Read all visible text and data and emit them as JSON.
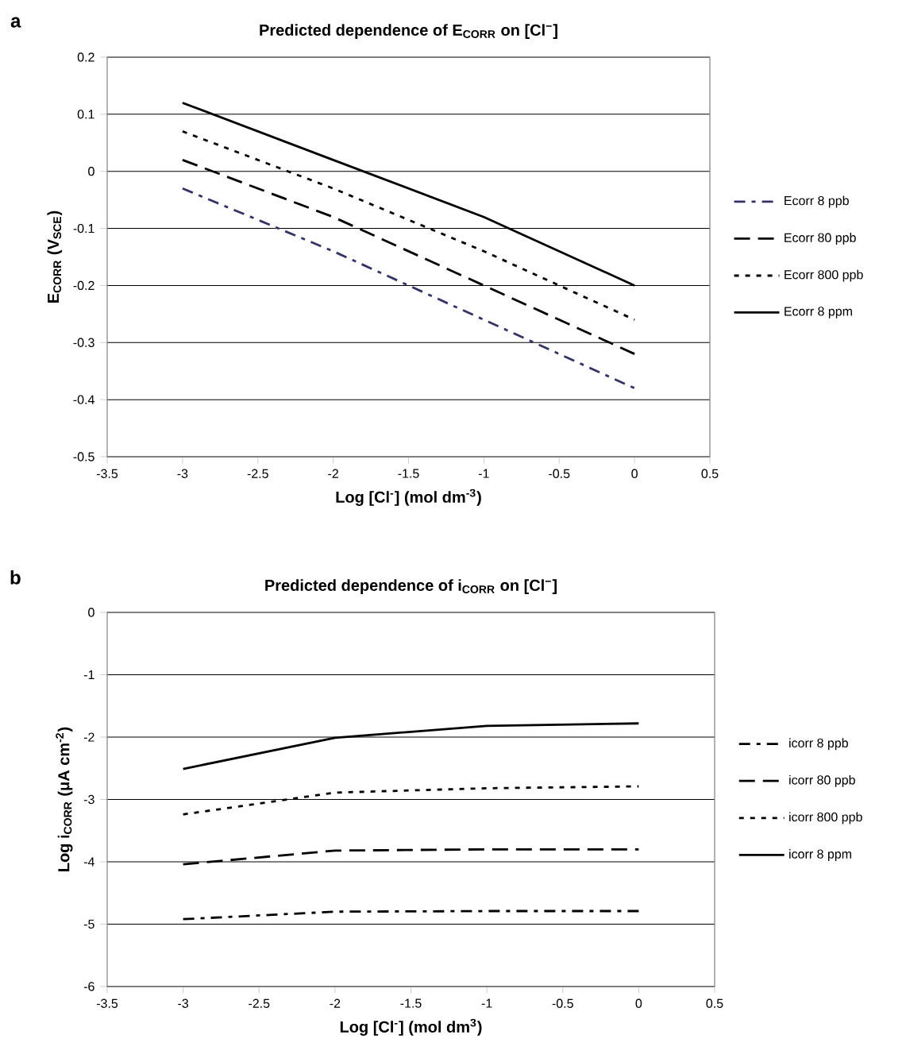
{
  "chart_data": [
    {
      "type": "line",
      "title": "Predicted dependence of E$_{CORR}$ on [Cl$^{−}$]",
      "xlabel": "Log [Cl$^{-}$] (mol dm$^{-3}$)",
      "ylabel": "E$_{CORR}$ (V$_{SCE}$)",
      "annotations": [
        "a"
      ],
      "x": [
        -3,
        -2,
        -1,
        0
      ],
      "xlim": [
        -3.5,
        0.5
      ],
      "xticks": [
        -3.5,
        -3,
        -2.5,
        -2,
        -1.5,
        -1,
        -0.5,
        0,
        0.5
      ],
      "ylim": [
        -0.5,
        0.2
      ],
      "yticks": [
        -0.5,
        -0.4,
        -0.3,
        -0.2,
        -0.1,
        0,
        0.1,
        0.2
      ],
      "grid": "y",
      "legend": "right",
      "series": [
        {
          "name": "Ecorr 8 ppb",
          "color": "#333366",
          "line_style": "dashdot",
          "values": [
            -0.03,
            -0.14,
            -0.26,
            -0.38
          ]
        },
        {
          "name": "Ecorr 80 ppb",
          "color": "#000000",
          "line_style": "dashed",
          "values": [
            0.02,
            -0.08,
            -0.2,
            -0.32
          ]
        },
        {
          "name": "Ecorr 800 ppb",
          "color": "#000000",
          "line_style": "dotted",
          "values": [
            0.07,
            -0.03,
            -0.14,
            -0.26
          ]
        },
        {
          "name": "Ecorr 8 ppm",
          "color": "#000000",
          "line_style": "solid",
          "values": [
            0.12,
            0.02,
            -0.08,
            -0.2
          ]
        }
      ]
    },
    {
      "type": "line",
      "title": "Predicted dependence of i$_{CORR}$ on [Cl$^{−}$]",
      "xlabel": "Log [Cl$^{-}$] (mol dm$^{3}$)",
      "ylabel": "Log i$_{CORR}$ (μA cm$^{-2}$)",
      "annotations": [
        "b"
      ],
      "x": [
        -3,
        -2,
        -1,
        0
      ],
      "xlim": [
        -3.5,
        0.5
      ],
      "xticks": [
        -3.5,
        -3,
        -2.5,
        -2,
        -1.5,
        -1,
        -0.5,
        0,
        0.5
      ],
      "ylim": [
        -6,
        0
      ],
      "yticks": [
        -6,
        -5,
        -4,
        -3,
        -2,
        -1,
        0
      ],
      "grid": "y",
      "legend": "right",
      "series": [
        {
          "name": "icorr 8 ppb",
          "color": "#000000",
          "line_style": "dashdot",
          "values": [
            -4.92,
            -4.8,
            -4.79,
            -4.79
          ]
        },
        {
          "name": "icorr 80 ppb",
          "color": "#000000",
          "line_style": "dashed",
          "values": [
            -4.04,
            -3.82,
            -3.8,
            -3.8
          ]
        },
        {
          "name": "icorr 800 ppb",
          "color": "#000000",
          "line_style": "dotted",
          "values": [
            -3.24,
            -2.89,
            -2.82,
            -2.79
          ]
        },
        {
          "name": "icorr 8 ppm",
          "color": "#000000",
          "line_style": "solid",
          "values": [
            -2.51,
            -2.01,
            -1.82,
            -1.78
          ]
        }
      ]
    }
  ]
}
